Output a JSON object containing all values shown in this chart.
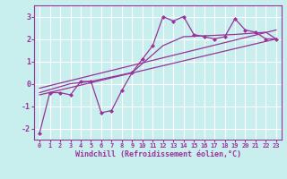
{
  "title": "",
  "xlabel": "Windchill (Refroidissement éolien,°C)",
  "ylabel": "",
  "bg_color": "#c8eeee",
  "line_color": "#993399",
  "xlim": [
    -0.5,
    23.5
  ],
  "ylim": [
    -2.5,
    3.5
  ],
  "yticks": [
    -2,
    -1,
    0,
    1,
    2,
    3
  ],
  "xticks": [
    0,
    1,
    2,
    3,
    4,
    5,
    6,
    7,
    8,
    9,
    10,
    11,
    12,
    13,
    14,
    15,
    16,
    17,
    18,
    19,
    20,
    21,
    22,
    23
  ],
  "main_x": [
    0,
    1,
    2,
    3,
    4,
    5,
    6,
    7,
    8,
    9,
    10,
    11,
    12,
    13,
    14,
    15,
    16,
    17,
    18,
    19,
    20,
    21,
    22,
    23
  ],
  "main_y": [
    -2.2,
    -0.4,
    -0.4,
    -0.5,
    0.1,
    0.1,
    -1.3,
    -1.2,
    -0.3,
    0.5,
    1.1,
    1.7,
    3.0,
    2.8,
    3.0,
    2.2,
    2.1,
    2.0,
    2.1,
    2.9,
    2.4,
    2.3,
    2.0,
    2.0
  ],
  "trend1_x": [
    0,
    23
  ],
  "trend1_y": [
    -0.5,
    2.0
  ],
  "trend2_x": [
    0,
    23
  ],
  "trend2_y": [
    -0.2,
    2.4
  ],
  "smooth_x": [
    0,
    3,
    5,
    9,
    12,
    14,
    19,
    22,
    23
  ],
  "smooth_y": [
    -0.4,
    0.0,
    0.1,
    0.5,
    1.7,
    2.1,
    2.2,
    2.3,
    2.0
  ]
}
